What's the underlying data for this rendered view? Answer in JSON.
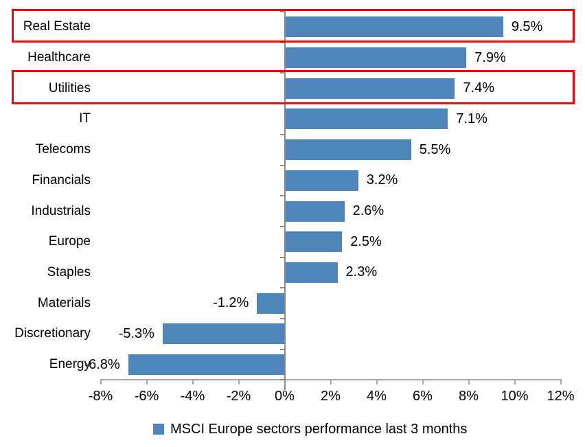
{
  "chart_data": {
    "type": "bar",
    "orientation": "horizontal",
    "title": "",
    "categories": [
      "Real Estate",
      "Healthcare",
      "Utilities",
      "IT",
      "Telecoms",
      "Financials",
      "Industrials",
      "Europe",
      "Staples",
      "Materials",
      "Discretionary",
      "Energy"
    ],
    "values": [
      9.5,
      7.9,
      7.4,
      7.1,
      5.5,
      3.2,
      2.6,
      2.5,
      2.3,
      -1.2,
      -5.3,
      -6.8
    ],
    "value_labels": [
      "9.5%",
      "7.9%",
      "7.4%",
      "7.1%",
      "5.5%",
      "3.2%",
      "2.6%",
      "2.5%",
      "2.3%",
      "-1.2%",
      "-5.3%",
      "-6.8%"
    ],
    "xlim": [
      -8,
      12
    ],
    "x_ticks": [
      -8,
      -6,
      -4,
      -2,
      0,
      2,
      4,
      6,
      8,
      10,
      12
    ],
    "x_tick_labels": [
      "-8%",
      "-6%",
      "-4%",
      "-2%",
      "0%",
      "2%",
      "4%",
      "6%",
      "8%",
      "10%",
      "12%"
    ],
    "grid": false,
    "legend": "MSCI Europe sectors performance last 3 months",
    "legend_position": "bottom",
    "bar_color": "#4e86bc",
    "axis_color": "#a6a6a6",
    "highlight_color": "#ff0000",
    "highlighted_rows": [
      "Real Estate",
      "Utilities"
    ]
  }
}
